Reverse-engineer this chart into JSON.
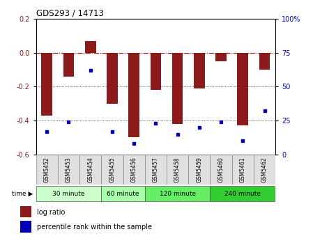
{
  "title": "GDS293 / 14713",
  "samples": [
    "GSM5452",
    "GSM5453",
    "GSM5454",
    "GSM5455",
    "GSM5456",
    "GSM5457",
    "GSM5458",
    "GSM5459",
    "GSM5460",
    "GSM5461",
    "GSM5462"
  ],
  "log_ratios": [
    -0.37,
    -0.14,
    0.07,
    -0.3,
    -0.5,
    -0.22,
    -0.42,
    -0.21,
    -0.05,
    -0.43,
    -0.1
  ],
  "percentile_ranks": [
    17,
    24,
    62,
    17,
    8,
    23,
    15,
    20,
    24,
    10,
    32
  ],
  "ylim_left": [
    -0.6,
    0.2
  ],
  "bar_color": "#8B1A1A",
  "dot_color": "#0000BB",
  "zero_line_color": "#CC0000",
  "grid_color": "#000000",
  "bg_color": "#FFFFFF",
  "time_groups": [
    {
      "label": "30 minute",
      "samples": [
        "GSM5452",
        "GSM5453",
        "GSM5454"
      ],
      "color": "#CCFFCC"
    },
    {
      "label": "60 minute",
      "samples": [
        "GSM5455",
        "GSM5456"
      ],
      "color": "#AAFFAA"
    },
    {
      "label": "120 minute",
      "samples": [
        "GSM5457",
        "GSM5458",
        "GSM5459"
      ],
      "color": "#66EE66"
    },
    {
      "label": "240 minute",
      "samples": [
        "GSM5460",
        "GSM5461",
        "GSM5462"
      ],
      "color": "#33CC33"
    }
  ],
  "yticks_left": [
    -0.6,
    -0.4,
    -0.2,
    0.0,
    0.2
  ],
  "yticks_right": [
    0,
    25,
    50,
    75,
    100
  ],
  "legend_log_ratio": "log ratio",
  "legend_percentile": "percentile rank within the sample"
}
